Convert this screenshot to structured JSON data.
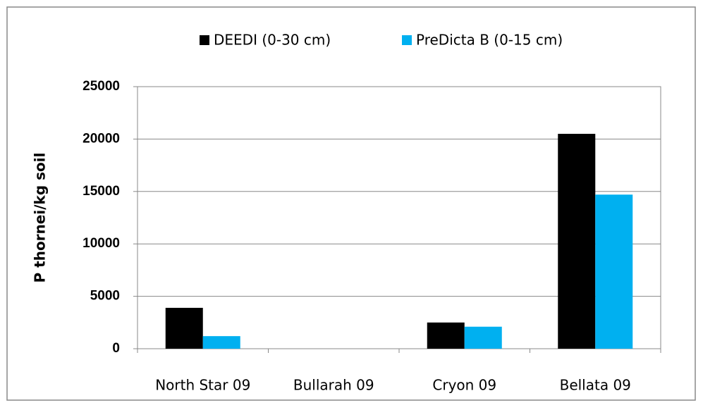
{
  "chart_data": {
    "type": "bar",
    "y_label": "P thornei/kg soil",
    "categories": [
      "North Star 09",
      "Bullarah 09",
      "Cryon 09",
      "Bellata 09"
    ],
    "series": [
      {
        "name": "DEEDI (0-30 cm)",
        "color": "#000000",
        "values": [
          3900,
          0,
          2500,
          20500
        ]
      },
      {
        "name": "PreDicta B (0-15 cm)",
        "color": "#00b0f0",
        "values": [
          1200,
          0,
          2100,
          14700
        ]
      }
    ],
    "ylim": [
      0,
      25000
    ],
    "yticks": [
      0,
      5000,
      10000,
      15000,
      20000,
      25000
    ],
    "grid": true,
    "legend": "top"
  }
}
